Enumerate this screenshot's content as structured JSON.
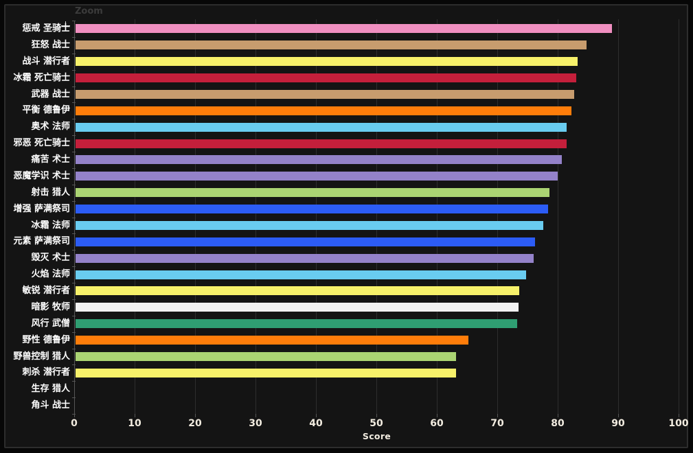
{
  "toolbar": {
    "zoom_label": "Zoom"
  },
  "chart_data": {
    "type": "bar",
    "orientation": "horizontal",
    "title": "",
    "xlabel": "Score",
    "ylabel": "",
    "xlim": [
      0,
      100
    ],
    "x_ticks": [
      0,
      10,
      20,
      30,
      40,
      50,
      60,
      70,
      80,
      90,
      100
    ],
    "grid": true,
    "legend": false,
    "categories": [
      "惩戒 圣骑士",
      "狂怒 战士",
      "战斗 潜行者",
      "冰霜 死亡骑士",
      "武器 战士",
      "平衡 德鲁伊",
      "奥术 法师",
      "邪恶 死亡骑士",
      "痛苦 术士",
      "恶魔学识 术士",
      "射击 猎人",
      "增强 萨满祭司",
      "冰霜 法师",
      "元素 萨满祭司",
      "毁灭 术士",
      "火焰 法师",
      "敏锐 潜行者",
      "暗影 牧师",
      "风行 武僧",
      "野性 德鲁伊",
      "野兽控制 猎人",
      "刺杀 潜行者",
      "生存 猎人",
      "角斗 战士"
    ],
    "values": [
      88.7,
      84.5,
      83.1,
      82.8,
      82.5,
      82.1,
      81.3,
      81.3,
      80.4,
      79.8,
      78.4,
      78.2,
      77.4,
      76.0,
      75.8,
      74.5,
      73.4,
      73.3,
      73.1,
      65.0,
      63.0,
      62.9,
      0,
      0
    ],
    "bar_colors": [
      "#f08fc0",
      "#c79c6e",
      "#f7f16a",
      "#c41f3b",
      "#c79c6e",
      "#ff7d0a",
      "#69ccf0",
      "#c41f3b",
      "#9482c9",
      "#9482c9",
      "#abd473",
      "#2c5cf5",
      "#69ccf0",
      "#2c5cf5",
      "#9482c9",
      "#69ccf0",
      "#f7f16a",
      "#f2f2f2",
      "#2f9e72",
      "#ff7d0a",
      "#abd473",
      "#f7f16a",
      null,
      null
    ]
  }
}
